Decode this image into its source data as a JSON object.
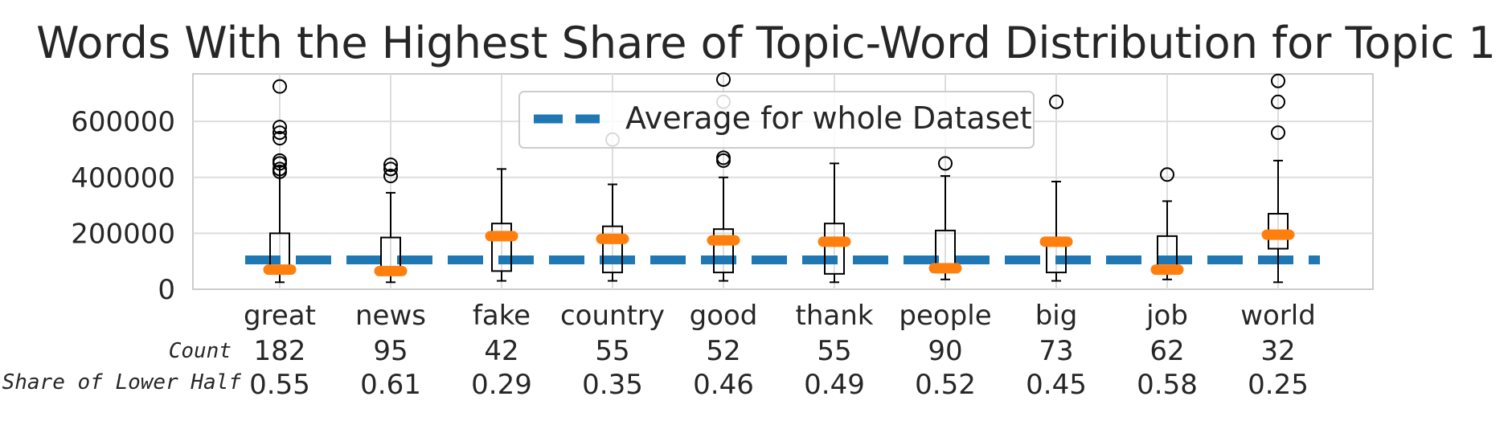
{
  "chart_data": {
    "type": "box",
    "title": "Words With the Highest Share of Topic-Word Distribution for Topic 1",
    "xlabel": "",
    "ylabel": "",
    "ylim": [
      0,
      770000
    ],
    "yticks": [
      0,
      200000,
      400000,
      600000
    ],
    "grid": true,
    "legend": {
      "position": "top-center",
      "entries": [
        "Average for whole Dataset"
      ]
    },
    "average_line": 105000,
    "categories": [
      "great",
      "news",
      "fake",
      "country",
      "good",
      "thank",
      "people",
      "big",
      "job",
      "world"
    ],
    "row_labels": {
      "count": "Count",
      "share": "Share of Lower Half"
    },
    "counts": [
      "182",
      "95",
      "42",
      "55",
      "52",
      "55",
      "90",
      "73",
      "62",
      "32"
    ],
    "shares": [
      "0.55",
      "0.61",
      "0.29",
      "0.35",
      "0.46",
      "0.49",
      "0.52",
      "0.45",
      "0.58",
      "0.25"
    ],
    "boxes": [
      {
        "q1": 70000,
        "median": 70000,
        "q3": 200000,
        "whisker_low": 25000,
        "whisker_high": 440000,
        "outliers": [
          420000,
          430000,
          450000,
          460000,
          540000,
          560000,
          580000,
          725000
        ]
      },
      {
        "q1": 65000,
        "median": 65000,
        "q3": 185000,
        "whisker_low": 25000,
        "whisker_high": 345000,
        "outliers": [
          405000,
          430000,
          445000
        ]
      },
      {
        "q1": 65000,
        "median": 190000,
        "q3": 235000,
        "whisker_low": 30000,
        "whisker_high": 430000,
        "outliers": []
      },
      {
        "q1": 60000,
        "median": 180000,
        "q3": 225000,
        "whisker_low": 30000,
        "whisker_high": 375000,
        "outliers": [
          535000
        ]
      },
      {
        "q1": 60000,
        "median": 175000,
        "q3": 215000,
        "whisker_low": 30000,
        "whisker_high": 400000,
        "outliers": [
          460000,
          470000,
          670000,
          750000
        ]
      },
      {
        "q1": 55000,
        "median": 170000,
        "q3": 235000,
        "whisker_low": 25000,
        "whisker_high": 450000,
        "outliers": []
      },
      {
        "q1": 70000,
        "median": 75000,
        "q3": 210000,
        "whisker_low": 35000,
        "whisker_high": 405000,
        "outliers": [
          450000
        ]
      },
      {
        "q1": 60000,
        "median": 170000,
        "q3": 185000,
        "whisker_low": 30000,
        "whisker_high": 385000,
        "outliers": [
          670000
        ]
      },
      {
        "q1": 70000,
        "median": 70000,
        "q3": 190000,
        "whisker_low": 35000,
        "whisker_high": 315000,
        "outliers": [
          410000
        ]
      },
      {
        "q1": 145000,
        "median": 195000,
        "q3": 270000,
        "whisker_low": 25000,
        "whisker_high": 460000,
        "outliers": [
          560000,
          670000,
          745000
        ]
      }
    ],
    "colors": {
      "average": "#1f77b4",
      "median": "#ff7f0e",
      "box": "#000000",
      "grid": "#dddddd",
      "frame": "#cccccc"
    }
  }
}
